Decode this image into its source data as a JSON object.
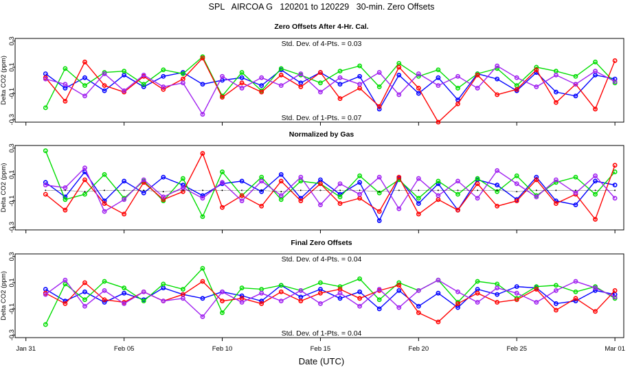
{
  "chart_data": {
    "title": "SPL   AIRCOA G   120201 to 120229   30-min. Zero Offsets",
    "xlabel": "Date (UTC)",
    "x_ticks": [
      "Jan 31",
      "Feb 05",
      "Feb 10",
      "Feb 15",
      "Feb 20",
      "Feb 25",
      "Mar 01"
    ],
    "x_tick_days": [
      0,
      5,
      10,
      15,
      20,
      25,
      30
    ],
    "xlim_days_from_jan31": [
      -0.55,
      30.45
    ],
    "x_days_from_jan31": [
      1,
      2,
      3,
      4,
      5,
      6,
      7,
      8,
      9,
      10,
      11,
      12,
      13,
      14,
      15,
      16,
      17,
      18,
      19,
      20,
      21,
      22,
      23,
      24,
      25,
      26,
      27,
      28,
      29,
      30
    ],
    "series_colors": {
      "blue": "#0000ff",
      "green": "#00dd00",
      "red": "#ff0000",
      "magenta": "#a020f0",
      "black": "#000000"
    },
    "panels": [
      {
        "type": "scatter",
        "title": "Zero Offsets After 4-Hr. Cal.",
        "ylabel": "Delta CO2 (ppm)",
        "ylim": [
          -0.32,
          0.32
        ],
        "y_ticks": [
          "0.3",
          "0.1",
          "-0.1",
          "-0.3"
        ],
        "y_tick_values": [
          0.3,
          0.1,
          -0.1,
          -0.3
        ],
        "annotation_top": "Std. Dev. of 4-Pts. =  0.03",
        "annotation_bottom": "Std. Dev. of 1-Pts. =  0.07",
        "series": [
          {
            "color": "blue",
            "values": [
              0.05,
              -0.06,
              0.02,
              -0.08,
              0.04,
              -0.05,
              0.03,
              0.06,
              -0.03,
              0.0,
              0.02,
              -0.04,
              0.08,
              -0.02,
              0.06,
              -0.03,
              0.03,
              -0.22,
              0.04,
              -0.1,
              0.02,
              -0.15,
              0.05,
              0.01,
              -0.08,
              0.06,
              -0.09,
              -0.12,
              0.04,
              0.01
            ]
          },
          {
            "color": "green",
            "values": [
              -0.21,
              0.09,
              -0.04,
              0.06,
              0.07,
              -0.03,
              0.08,
              0.05,
              0.18,
              -0.12,
              0.06,
              -0.08,
              0.09,
              0.04,
              -0.02,
              0.07,
              0.11,
              -0.05,
              0.13,
              0.03,
              0.08,
              -0.06,
              0.05,
              0.09,
              -0.04,
              0.1,
              0.07,
              0.03,
              0.14,
              -0.02
            ]
          },
          {
            "color": "red",
            "values": [
              0.02,
              -0.16,
              0.14,
              -0.04,
              -0.09,
              0.03,
              -0.07,
              0.01,
              0.17,
              -0.13,
              -0.02,
              -0.09,
              0.04,
              -0.05,
              0.06,
              -0.14,
              -0.06,
              -0.2,
              0.1,
              -0.06,
              -0.32,
              -0.18,
              0.04,
              -0.11,
              -0.07,
              0.08,
              -0.17,
              -0.03,
              -0.22,
              0.15
            ]
          },
          {
            "color": "magenta",
            "values": [
              0.01,
              -0.03,
              -0.12,
              0.05,
              -0.08,
              0.04,
              -0.05,
              -0.02,
              -0.26,
              0.03,
              -0.06,
              0.02,
              -0.04,
              0.05,
              -0.09,
              0.02,
              -0.03,
              0.06,
              -0.11,
              0.05,
              -0.04,
              0.03,
              -0.06,
              0.11,
              0.02,
              -0.05,
              0.04,
              -0.03,
              0.07,
              -0.01
            ]
          }
        ]
      },
      {
        "type": "scatter",
        "title": "Normalized by Gas",
        "ylabel": "Delta CO2 (ppm)",
        "ylim": [
          -0.32,
          0.32
        ],
        "y_ticks": [
          "0.3",
          "0.1",
          "-0.1",
          "-0.3"
        ],
        "y_tick_values": [
          0.3,
          0.1,
          -0.1,
          -0.3
        ],
        "series": [
          {
            "color": "blue",
            "values": [
              0.04,
              -0.07,
              0.12,
              -0.1,
              0.05,
              -0.04,
              0.08,
              0.02,
              -0.06,
              0.03,
              0.05,
              -0.03,
              0.1,
              -0.08,
              0.06,
              -0.05,
              0.04,
              -0.25,
              0.07,
              -0.12,
              0.03,
              -0.17,
              0.06,
              0.02,
              -0.09,
              0.08,
              -0.1,
              -0.13,
              0.05,
              0.02
            ]
          },
          {
            "color": "green",
            "values": [
              0.28,
              -0.09,
              -0.05,
              0.1,
              -0.08,
              0.05,
              -0.1,
              0.07,
              -0.22,
              0.12,
              -0.06,
              0.08,
              -0.09,
              0.05,
              0.03,
              -0.07,
              0.09,
              -0.04,
              0.06,
              -0.08,
              0.05,
              -0.05,
              0.07,
              -0.03,
              0.09,
              -0.06,
              0.04,
              0.08,
              -0.05,
              0.12
            ]
          },
          {
            "color": "red",
            "values": [
              -0.05,
              -0.17,
              0.06,
              -0.12,
              -0.2,
              0.04,
              -0.09,
              -0.03,
              0.26,
              -0.15,
              -0.06,
              -0.14,
              0.05,
              -0.1,
              0.03,
              -0.12,
              -0.08,
              -0.18,
              0.08,
              -0.2,
              -0.09,
              -0.17,
              0.03,
              -0.14,
              -0.1,
              0.06,
              -0.12,
              -0.05,
              -0.24,
              0.17
            ]
          },
          {
            "color": "magenta",
            "values": [
              0.02,
              0.0,
              0.15,
              -0.18,
              -0.09,
              0.06,
              -0.07,
              0.0,
              -0.08,
              0.04,
              -0.1,
              0.05,
              -0.06,
              0.08,
              -0.13,
              0.03,
              -0.05,
              0.08,
              -0.16,
              0.07,
              -0.06,
              0.05,
              -0.08,
              0.13,
              0.03,
              -0.07,
              0.06,
              -0.04,
              0.09,
              -0.08
            ]
          },
          {
            "color": "black",
            "values": [
              -0.02,
              -0.02,
              -0.03,
              -0.02,
              -0.02,
              -0.02,
              -0.03,
              -0.02,
              -0.02,
              -0.02,
              -0.02,
              -0.02,
              -0.03,
              -0.02,
              -0.02,
              -0.02,
              -0.02,
              -0.03,
              -0.02,
              -0.02,
              -0.02,
              -0.02,
              -0.02,
              -0.02,
              -0.03,
              -0.02,
              -0.02,
              -0.02,
              -0.02,
              -0.02
            ]
          }
        ]
      },
      {
        "type": "scatter",
        "title": "Final Zero Offsets",
        "ylabel": "Delta CO2 (ppm)",
        "ylim": [
          -0.32,
          0.32
        ],
        "y_ticks": [
          "0.3",
          "0.1",
          "-0.1",
          "-0.3"
        ],
        "y_tick_values": [
          0.3,
          0.1,
          -0.1,
          -0.3
        ],
        "annotation_top": "Std. Dev. of 4-Pts. =  0.04",
        "annotation_bottom": "Std. Dev. of 1-Pts. =  0.04",
        "series": [
          {
            "color": "blue",
            "values": [
              0.05,
              -0.04,
              0.03,
              -0.05,
              0.02,
              -0.03,
              0.06,
              0.01,
              -0.02,
              0.03,
              0.0,
              -0.04,
              0.08,
              -0.01,
              0.05,
              -0.02,
              0.03,
              -0.1,
              0.04,
              -0.08,
              0.02,
              -0.09,
              0.05,
              0.01,
              0.07,
              0.06,
              -0.06,
              -0.04,
              0.04,
              0.01
            ]
          },
          {
            "color": "green",
            "values": [
              -0.22,
              0.09,
              -0.03,
              0.11,
              0.06,
              -0.04,
              0.09,
              0.05,
              0.21,
              -0.13,
              0.06,
              0.05,
              0.08,
              0.04,
              0.1,
              0.07,
              0.13,
              -0.03,
              0.1,
              0.04,
              0.12,
              -0.05,
              0.11,
              0.09,
              -0.02,
              0.07,
              0.08,
              0.03,
              0.07,
              -0.02
            ]
          },
          {
            "color": "red",
            "values": [
              0.02,
              -0.06,
              0.1,
              -0.03,
              -0.05,
              0.03,
              -0.04,
              0.01,
              0.11,
              -0.04,
              -0.02,
              -0.06,
              0.03,
              -0.04,
              0.02,
              0.05,
              -0.02,
              0.04,
              0.08,
              -0.13,
              -0.2,
              -0.06,
              0.02,
              -0.05,
              -0.03,
              0.05,
              -0.11,
              -0.02,
              -0.12,
              0.04
            ]
          },
          {
            "color": "magenta",
            "values": [
              0.01,
              0.12,
              -0.08,
              0.04,
              -0.06,
              0.03,
              -0.04,
              -0.02,
              -0.16,
              0.03,
              -0.05,
              0.02,
              -0.04,
              0.04,
              -0.06,
              0.02,
              -0.08,
              0.05,
              -0.09,
              0.04,
              0.12,
              0.03,
              -0.05,
              0.06,
              0.02,
              -0.05,
              0.04,
              0.11,
              0.06,
              -0.01
            ]
          }
        ]
      }
    ]
  }
}
